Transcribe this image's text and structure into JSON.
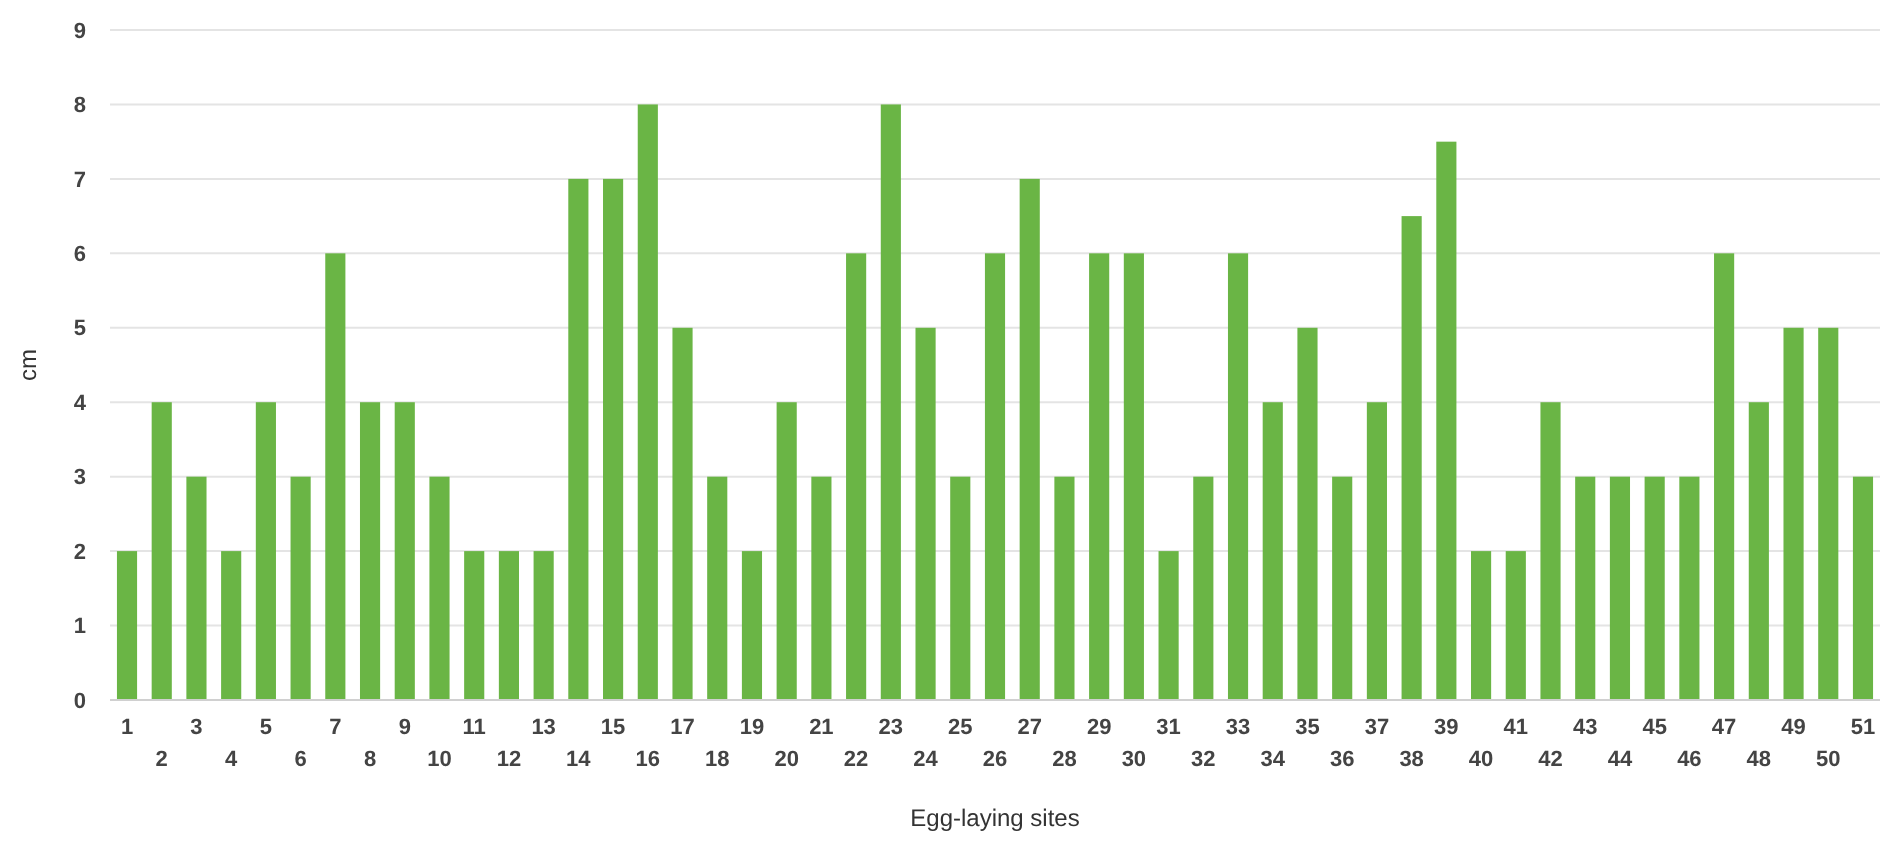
{
  "chart_data": {
    "type": "bar",
    "xlabel": "Egg-laying sites",
    "ylabel": "cm",
    "categories": [
      "1",
      "2",
      "3",
      "4",
      "5",
      "6",
      "7",
      "8",
      "9",
      "10",
      "11",
      "12",
      "13",
      "14",
      "15",
      "16",
      "17",
      "18",
      "19",
      "20",
      "21",
      "22",
      "23",
      "24",
      "25",
      "26",
      "27",
      "28",
      "29",
      "30",
      "31",
      "32",
      "33",
      "34",
      "35",
      "36",
      "37",
      "38",
      "39",
      "40",
      "41",
      "42",
      "43",
      "44",
      "45",
      "46",
      "47",
      "48",
      "49",
      "50",
      "51"
    ],
    "values": [
      2,
      4,
      3,
      2,
      4,
      3,
      6,
      4,
      4,
      3,
      2,
      2,
      2,
      7,
      7,
      8,
      5,
      3,
      2,
      4,
      3,
      6,
      8,
      5,
      3,
      6,
      7,
      3,
      6,
      6,
      2,
      3,
      6,
      4,
      5,
      3,
      4,
      6.5,
      7.5,
      2,
      2,
      4,
      3,
      3,
      3,
      3,
      6,
      4,
      5,
      5,
      3
    ],
    "color": "#6ab545",
    "ylim": [
      0,
      9
    ],
    "yticks": [
      0,
      1,
      2,
      3,
      4,
      5,
      6,
      7,
      8,
      9
    ],
    "grid": "y"
  }
}
